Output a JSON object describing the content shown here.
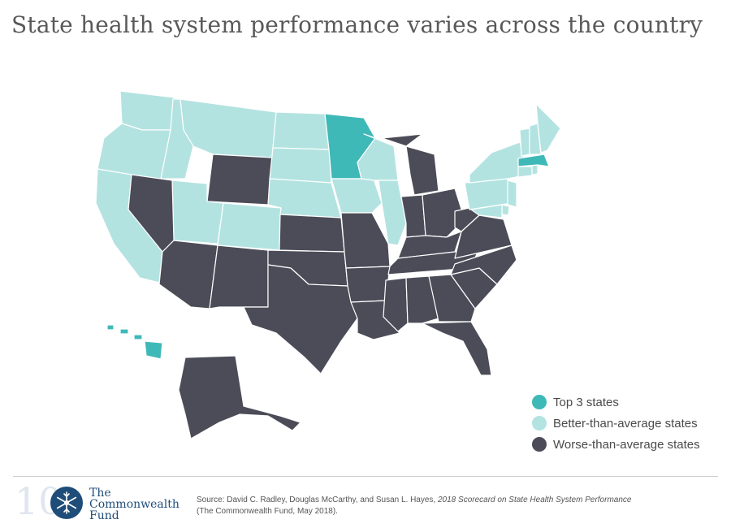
{
  "title": "State health system performance varies across the country",
  "colors": {
    "top": "#3fb8b8",
    "better": "#b3e3e1",
    "worse": "#4b4c58",
    "border": "#ffffff"
  },
  "legend": {
    "placement": "bottom-right",
    "items": [
      {
        "key": "top",
        "label": "Top 3 states"
      },
      {
        "key": "better",
        "label": "Better-than-average states"
      },
      {
        "key": "worse",
        "label": "Worse-than-average states"
      }
    ]
  },
  "categories": {
    "top": [
      "MN",
      "MA",
      "HI"
    ],
    "better": [
      "WA",
      "OR",
      "CA",
      "ID",
      "MT",
      "UT",
      "CO",
      "ND",
      "SD",
      "NE",
      "IA",
      "WI",
      "IL",
      "NY",
      "PA",
      "NJ",
      "DE",
      "MD",
      "CT",
      "RI",
      "VT",
      "NH",
      "ME"
    ],
    "worse": [
      "NV",
      "AZ",
      "NM",
      "WY",
      "TX",
      "OK",
      "KS",
      "MO",
      "AR",
      "LA",
      "MS",
      "AL",
      "GA",
      "FL",
      "SC",
      "NC",
      "TN",
      "KY",
      "VA",
      "WV",
      "OH",
      "IN",
      "MI",
      "AK"
    ]
  },
  "logo": {
    "name_line1": "The",
    "name_line2": "Commonwealth",
    "name_line3": "Fund",
    "snowflake_icon": "snowflake-icon"
  },
  "source": {
    "prefix": "Source: David C. Radley, Douglas McCarthy, and Susan L. Hayes, ",
    "report": "2018 Scorecard on State Health System Performance",
    "suffix": "(The Commonwealth Fund, May 2018)."
  }
}
